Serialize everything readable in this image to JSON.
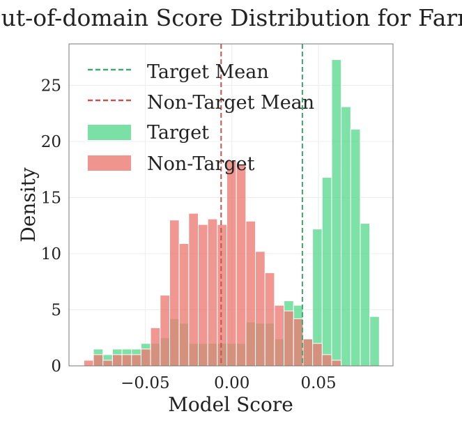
{
  "chart_data": {
    "type": "bar",
    "title": "Out-of-domain Score Distribution for Farm",
    "xlabel": "Model Score",
    "ylabel": "Density",
    "xlim": [
      -0.094,
      0.093
    ],
    "ylim": [
      0,
      28.7
    ],
    "xticks": [
      -0.05,
      0.0,
      0.05
    ],
    "xtick_labels": [
      "−0.05",
      "0.00",
      "0.05"
    ],
    "yticks": [
      0,
      5,
      10,
      15,
      20,
      25
    ],
    "ytick_labels": [
      "0",
      "5",
      "10",
      "15",
      "20",
      "25"
    ],
    "grid": true,
    "legend_position": "top-left",
    "colors": {
      "target": "#5ad88f",
      "non_target": "#ec7a72",
      "target_mean": "#3daa6e",
      "non_target_mean": "#c0564a",
      "overlap": "#ba8367"
    },
    "series": [
      {
        "name": "Target",
        "bin_width": 0.0055,
        "bins": [
          [
            -0.0799,
            1.5
          ],
          [
            -0.0744,
            1.0
          ],
          [
            -0.0689,
            1.5
          ],
          [
            -0.0634,
            1.5
          ],
          [
            -0.0579,
            1.5
          ],
          [
            -0.0524,
            2.0
          ],
          [
            -0.0469,
            2.0
          ],
          [
            -0.0414,
            2.5
          ],
          [
            -0.0359,
            4.2
          ],
          [
            -0.0304,
            3.8
          ],
          [
            -0.0249,
            2.0
          ],
          [
            -0.0194,
            2.0
          ],
          [
            -0.0139,
            2.0
          ],
          [
            -0.0084,
            2.0
          ],
          [
            -0.0029,
            2.0
          ],
          [
            0.0026,
            2.0
          ],
          [
            0.0081,
            3.9
          ],
          [
            0.0136,
            3.8
          ],
          [
            0.0191,
            3.8
          ],
          [
            0.0246,
            2.4
          ],
          [
            0.0301,
            5.8
          ],
          [
            0.0356,
            5.4
          ],
          [
            0.0411,
            2.4
          ],
          [
            0.0466,
            12.2
          ],
          [
            0.0521,
            16.8
          ],
          [
            0.0576,
            27.3
          ],
          [
            0.0631,
            23.1
          ],
          [
            0.0686,
            21.1
          ],
          [
            0.0741,
            12.7
          ],
          [
            0.0796,
            4.4
          ]
        ]
      },
      {
        "name": "Non-Target",
        "bin_width": 0.0055,
        "bins": [
          [
            -0.0854,
            0.5
          ],
          [
            -0.0799,
            1.0
          ],
          [
            -0.0744,
            0.5
          ],
          [
            -0.0689,
            1.0
          ],
          [
            -0.0634,
            1.0
          ],
          [
            -0.0579,
            1.0
          ],
          [
            -0.0524,
            1.5
          ],
          [
            -0.0469,
            3.4
          ],
          [
            -0.0414,
            6.3
          ],
          [
            -0.0359,
            13.0
          ],
          [
            -0.0304,
            10.9
          ],
          [
            -0.0249,
            13.6
          ],
          [
            -0.0194,
            12.6
          ],
          [
            -0.0139,
            13.1
          ],
          [
            -0.0084,
            12.6
          ],
          [
            -0.0029,
            18.3
          ],
          [
            0.0026,
            17.9
          ],
          [
            0.0081,
            12.9
          ],
          [
            0.0136,
            10.2
          ],
          [
            0.0191,
            8.3
          ],
          [
            0.0246,
            5.4
          ],
          [
            0.0301,
            4.9
          ],
          [
            0.0356,
            4.2
          ],
          [
            0.0411,
            2.4
          ],
          [
            0.0466,
            2.0
          ],
          [
            0.0521,
            1.0
          ],
          [
            0.0576,
            0.5
          ]
        ]
      }
    ],
    "reference_lines": [
      {
        "name": "Target Mean",
        "x": 0.0407,
        "style": "dashed"
      },
      {
        "name": "Non-Target Mean",
        "x": -0.0062,
        "style": "dashed"
      }
    ]
  }
}
